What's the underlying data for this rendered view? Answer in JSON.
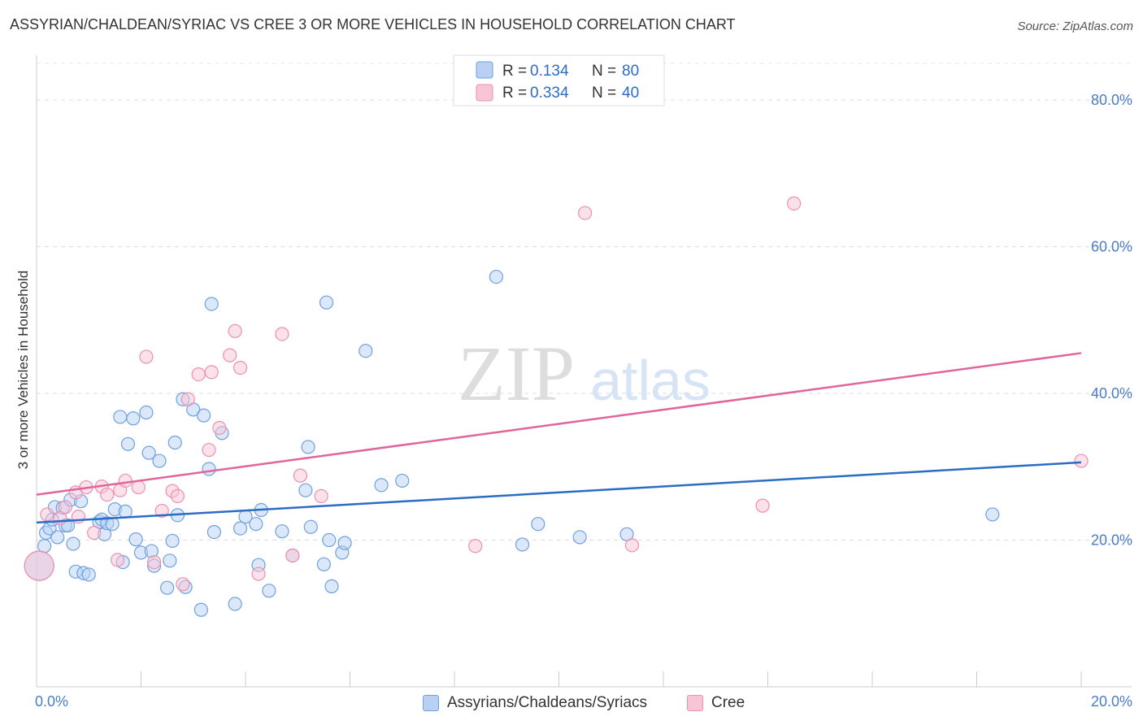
{
  "title": "ASSYRIAN/CHALDEAN/SYRIAC VS CREE 3 OR MORE VEHICLES IN HOUSEHOLD CORRELATION CHART",
  "source": "Source: ZipAtlas.com",
  "watermark": {
    "zip": "ZIP",
    "atlas": "atlas"
  },
  "colors": {
    "blue": "#6fa0e0",
    "blue_fill": "#b8d1f3",
    "blue_line": "#2b6cc4",
    "pink": "#ee8fb0",
    "pink_fill": "#f7c5d6",
    "pink_line": "#e0659a",
    "tick_text": "#4a7cc7"
  },
  "legend": {
    "rows": [
      {
        "r_label": "R =",
        "r_value": "0.134",
        "n_label": "N =",
        "n_value": "80"
      },
      {
        "r_label": "R =",
        "r_value": "0.334",
        "n_label": "N =",
        "n_value": "40"
      }
    ]
  },
  "bottom_legend": {
    "blue": "Assyrians/Chaldeans/Syriacs",
    "pink": "Cree"
  },
  "chart_data": {
    "type": "scatter",
    "title": "ASSYRIAN/CHALDEAN/SYRIAC VS CREE 3 OR MORE VEHICLES IN HOUSEHOLD CORRELATION CHART",
    "xlabel": "",
    "ylabel": "3 or more Vehicles in Household",
    "xlim": [
      0,
      20
    ],
    "ylim": [
      0,
      85
    ],
    "x_tick_labels": [
      "0.0%",
      "20.0%"
    ],
    "y_ticks": [
      20,
      40,
      60,
      80
    ],
    "y_tick_labels": [
      "20.0%",
      "40.0%",
      "60.0%",
      "80.0%"
    ],
    "grid": true,
    "legend_position": "top-center",
    "series": [
      {
        "name": "Assyrians/Chaldeans/Syriacs",
        "color": "#6fa0e0",
        "trend": {
          "x": [
            0,
            20
          ],
          "y": [
            22.4,
            30.6
          ]
        },
        "points": [
          {
            "x": 0.05,
            "y": 16.5,
            "big": true
          },
          {
            "x": 0.15,
            "y": 19.2
          },
          {
            "x": 0.18,
            "y": 21.0
          },
          {
            "x": 0.25,
            "y": 21.6
          },
          {
            "x": 0.3,
            "y": 22.8
          },
          {
            "x": 0.35,
            "y": 24.5
          },
          {
            "x": 0.4,
            "y": 20.4
          },
          {
            "x": 0.5,
            "y": 24.4
          },
          {
            "x": 0.55,
            "y": 22.0
          },
          {
            "x": 0.6,
            "y": 22.0
          },
          {
            "x": 0.65,
            "y": 25.5
          },
          {
            "x": 0.7,
            "y": 19.5
          },
          {
            "x": 0.75,
            "y": 15.7
          },
          {
            "x": 0.85,
            "y": 25.3
          },
          {
            "x": 0.9,
            "y": 15.5
          },
          {
            "x": 1.0,
            "y": 15.3
          },
          {
            "x": 1.2,
            "y": 22.5
          },
          {
            "x": 1.25,
            "y": 22.8
          },
          {
            "x": 1.3,
            "y": 20.8
          },
          {
            "x": 1.35,
            "y": 22.3
          },
          {
            "x": 1.45,
            "y": 22.2
          },
          {
            "x": 1.5,
            "y": 24.2
          },
          {
            "x": 1.6,
            "y": 36.8
          },
          {
            "x": 1.65,
            "y": 17.0
          },
          {
            "x": 1.7,
            "y": 23.9
          },
          {
            "x": 1.75,
            "y": 33.1
          },
          {
            "x": 1.85,
            "y": 36.6
          },
          {
            "x": 1.9,
            "y": 20.1
          },
          {
            "x": 2.0,
            "y": 18.3
          },
          {
            "x": 2.1,
            "y": 37.4
          },
          {
            "x": 2.15,
            "y": 31.9
          },
          {
            "x": 2.2,
            "y": 18.5
          },
          {
            "x": 2.25,
            "y": 16.5
          },
          {
            "x": 2.35,
            "y": 30.8
          },
          {
            "x": 2.5,
            "y": 13.5
          },
          {
            "x": 2.55,
            "y": 17.2
          },
          {
            "x": 2.6,
            "y": 19.9
          },
          {
            "x": 2.65,
            "y": 33.3
          },
          {
            "x": 2.7,
            "y": 23.4
          },
          {
            "x": 2.8,
            "y": 39.2
          },
          {
            "x": 2.85,
            "y": 13.6
          },
          {
            "x": 3.0,
            "y": 37.8
          },
          {
            "x": 3.15,
            "y": 10.5
          },
          {
            "x": 3.2,
            "y": 37.0
          },
          {
            "x": 3.3,
            "y": 29.7
          },
          {
            "x": 3.35,
            "y": 52.2
          },
          {
            "x": 3.4,
            "y": 21.1
          },
          {
            "x": 3.55,
            "y": 34.6
          },
          {
            "x": 3.8,
            "y": 11.3
          },
          {
            "x": 3.9,
            "y": 21.6
          },
          {
            "x": 4.0,
            "y": 23.2
          },
          {
            "x": 4.2,
            "y": 22.2
          },
          {
            "x": 4.25,
            "y": 16.6
          },
          {
            "x": 4.3,
            "y": 24.1
          },
          {
            "x": 4.45,
            "y": 13.1
          },
          {
            "x": 4.7,
            "y": 21.2
          },
          {
            "x": 4.9,
            "y": 17.9
          },
          {
            "x": 5.15,
            "y": 26.8
          },
          {
            "x": 5.2,
            "y": 32.7
          },
          {
            "x": 5.25,
            "y": 21.8
          },
          {
            "x": 5.5,
            "y": 16.7
          },
          {
            "x": 5.55,
            "y": 52.4
          },
          {
            "x": 5.6,
            "y": 20.0
          },
          {
            "x": 5.65,
            "y": 13.7
          },
          {
            "x": 5.85,
            "y": 18.3
          },
          {
            "x": 5.9,
            "y": 19.6
          },
          {
            "x": 6.3,
            "y": 45.8
          },
          {
            "x": 6.6,
            "y": 27.5
          },
          {
            "x": 7.0,
            "y": 28.1
          },
          {
            "x": 8.8,
            "y": 55.9
          },
          {
            "x": 9.3,
            "y": 19.4
          },
          {
            "x": 9.6,
            "y": 22.2
          },
          {
            "x": 10.4,
            "y": 20.4
          },
          {
            "x": 11.3,
            "y": 20.8
          },
          {
            "x": 18.3,
            "y": 23.5
          }
        ]
      },
      {
        "name": "Cree",
        "color": "#ee8fb0",
        "trend": {
          "x": [
            0,
            20
          ],
          "y": [
            26.2,
            45.5
          ]
        },
        "points": [
          {
            "x": 0.05,
            "y": 16.5,
            "big": true
          },
          {
            "x": 0.2,
            "y": 23.5
          },
          {
            "x": 0.45,
            "y": 23.0
          },
          {
            "x": 0.55,
            "y": 24.5
          },
          {
            "x": 0.75,
            "y": 26.5
          },
          {
            "x": 0.8,
            "y": 23.2
          },
          {
            "x": 0.95,
            "y": 27.2
          },
          {
            "x": 1.1,
            "y": 21.0
          },
          {
            "x": 1.25,
            "y": 27.3
          },
          {
            "x": 1.35,
            "y": 26.2
          },
          {
            "x": 1.55,
            "y": 17.3
          },
          {
            "x": 1.6,
            "y": 26.8
          },
          {
            "x": 1.7,
            "y": 28.1
          },
          {
            "x": 1.95,
            "y": 27.2
          },
          {
            "x": 2.1,
            "y": 45.0
          },
          {
            "x": 2.25,
            "y": 17.0
          },
          {
            "x": 2.4,
            "y": 24.0
          },
          {
            "x": 2.6,
            "y": 26.7
          },
          {
            "x": 2.7,
            "y": 26.0
          },
          {
            "x": 2.8,
            "y": 14.0
          },
          {
            "x": 2.9,
            "y": 39.2
          },
          {
            "x": 3.1,
            "y": 42.6
          },
          {
            "x": 3.3,
            "y": 32.3
          },
          {
            "x": 3.35,
            "y": 42.9
          },
          {
            "x": 3.5,
            "y": 35.3
          },
          {
            "x": 3.7,
            "y": 45.2
          },
          {
            "x": 3.8,
            "y": 48.5
          },
          {
            "x": 3.9,
            "y": 43.5
          },
          {
            "x": 4.25,
            "y": 15.4
          },
          {
            "x": 4.7,
            "y": 48.1
          },
          {
            "x": 4.9,
            "y": 17.9
          },
          {
            "x": 5.05,
            "y": 28.8
          },
          {
            "x": 5.45,
            "y": 26.0
          },
          {
            "x": 8.4,
            "y": 19.2
          },
          {
            "x": 10.5,
            "y": 64.6
          },
          {
            "x": 11.4,
            "y": 19.3
          },
          {
            "x": 13.9,
            "y": 24.7
          },
          {
            "x": 14.5,
            "y": 65.9
          },
          {
            "x": 20.0,
            "y": 30.8
          }
        ]
      }
    ]
  }
}
